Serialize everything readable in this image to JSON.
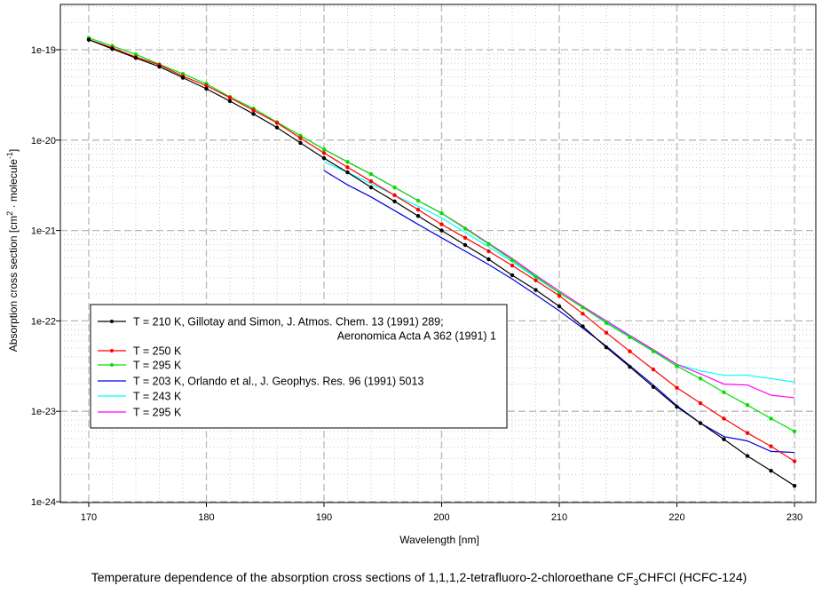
{
  "chart_data": {
    "type": "line",
    "title": "Temperature dependence of the absorption cross sections of 1,1,1,2-tetrafluoro-2-chloroethane CF3CHFCl (HCFC-124)",
    "title_parts": {
      "pre": "Temperature dependence of the absorption cross sections of 1,1,1,2-tetrafluoro-2-chloroethane CF",
      "sub": "3",
      "post": "CHFCl (HCFC-124)"
    },
    "xlabel": "Wavelength [nm]",
    "ylabel": "Absorption cross section [cm2 · molecule-1]",
    "ylabel_parts": {
      "a": "Absorption cross section [cm",
      "sup1": "2",
      "b": " · molecule",
      "sup2": "-1",
      "c": "]"
    },
    "xlim": [
      170,
      230
    ],
    "ylim": [
      1e-24,
      1e-19
    ],
    "yscale": "log",
    "grid": true,
    "legend_placement": "center-left",
    "x_ticks": [
      "170",
      "180",
      "190",
      "200",
      "210",
      "220",
      "230"
    ],
    "y_ticks": [
      "1e-19",
      "1e-20",
      "1e-21",
      "1e-22",
      "1e-23",
      "1e-24"
    ],
    "series": [
      {
        "name": "T = 210 K, Gillotay and Simon, J. Atmos. Chem. 13 (1991) 289;",
        "name2": "Aeronomica Acta A 362 (1991) 1",
        "color": "#000000",
        "markers": true,
        "x": [
          170,
          172,
          174,
          176,
          178,
          180,
          182,
          184,
          186,
          188,
          190,
          192,
          194,
          196,
          198,
          200,
          202,
          204,
          206,
          208,
          210,
          212,
          214,
          216,
          218,
          220,
          222,
          224,
          226,
          228,
          230
        ],
        "y": [
          1.29e-19,
          1.02e-19,
          8.1e-20,
          6.5e-20,
          4.9e-20,
          3.7e-20,
          2.7e-20,
          1.95e-20,
          1.38e-20,
          9.3e-21,
          6.3e-21,
          4.4e-21,
          3e-21,
          2.1e-21,
          1.45e-21,
          1e-21,
          6.9e-22,
          4.8e-22,
          3.2e-22,
          2.2e-22,
          1.45e-22,
          8.7e-23,
          5.1e-23,
          3.1e-23,
          1.86e-23,
          1.12e-23,
          7.4e-24,
          4.9e-24,
          3.2e-24,
          2.2e-24,
          1.5e-24
        ]
      },
      {
        "name": "T = 250 K",
        "color": "#ff0000",
        "markers": true,
        "x": [
          170,
          172,
          174,
          176,
          178,
          180,
          182,
          184,
          186,
          188,
          190,
          192,
          194,
          196,
          198,
          200,
          202,
          204,
          206,
          208,
          210,
          212,
          214,
          216,
          218,
          220,
          222,
          224,
          226,
          228,
          230
        ],
        "y": [
          1.29e-19,
          1.05e-19,
          8.3e-20,
          6.8e-20,
          5.1e-20,
          4e-20,
          2.95e-20,
          2.14e-20,
          1.55e-20,
          1.05e-20,
          7.2e-21,
          5e-21,
          3.5e-21,
          2.45e-21,
          1.7e-21,
          1.17e-21,
          8.3e-22,
          5.9e-22,
          4.1e-22,
          2.8e-22,
          1.9e-22,
          1.2e-22,
          7.4e-23,
          4.6e-23,
          2.9e-23,
          1.82e-23,
          1.23e-23,
          8.3e-24,
          5.75e-24,
          4.1e-24,
          2.8e-24
        ]
      },
      {
        "name": "T = 295 K",
        "color": "#00e000",
        "markers": true,
        "x": [
          170,
          172,
          174,
          176,
          178,
          180,
          182,
          184,
          186,
          188,
          190,
          192,
          194,
          196,
          198,
          200,
          202,
          204,
          206,
          208,
          210,
          212,
          214,
          216,
          218,
          220,
          222,
          224,
          226,
          228,
          230
        ],
        "y": [
          1.35e-19,
          1.1e-19,
          8.9e-20,
          6.9e-20,
          5.4e-20,
          4.2e-20,
          3e-20,
          2.24e-20,
          1.58e-20,
          1.12e-20,
          7.9e-21,
          5.75e-21,
          4.2e-21,
          3e-21,
          2.14e-21,
          1.55e-21,
          1.05e-21,
          7.1e-22,
          4.7e-22,
          3.1e-22,
          2.04e-22,
          1.41e-22,
          9.5e-23,
          6.6e-23,
          4.6e-23,
          3.16e-23,
          2.3e-23,
          1.62e-23,
          1.17e-23,
          8.3e-24,
          6e-24
        ]
      },
      {
        "name": "T = 203 K, Orlando et al., J. Geophys. Res. 96 (1991) 5013",
        "color": "#0000dd",
        "markers": false,
        "x": [
          190,
          192,
          194,
          196,
          198,
          200,
          202,
          204,
          206,
          208,
          210,
          212,
          214,
          216,
          218,
          220,
          222,
          224,
          226,
          228,
          230
        ],
        "y": [
          4.6e-21,
          3.2e-21,
          2.35e-21,
          1.66e-21,
          1.17e-21,
          8.3e-22,
          5.9e-22,
          4.2e-22,
          2.9e-22,
          1.95e-22,
          1.29e-22,
          8.3e-23,
          5.25e-23,
          3.2e-23,
          1.95e-23,
          1.15e-23,
          7.4e-24,
          5.25e-24,
          4.7e-24,
          3.6e-24,
          3.5e-24
        ]
      },
      {
        "name": "T = 243 K",
        "color": "#00ffff",
        "markers": false,
        "x": [
          190,
          192,
          194,
          196,
          198,
          200,
          202,
          204,
          206,
          208,
          210,
          212,
          214,
          216,
          218,
          220,
          222,
          224,
          226,
          228,
          230
        ],
        "y": [
          5.75e-21,
          4.4e-21,
          3.3e-21,
          2.45e-21,
          1.86e-21,
          1.38e-21,
          9.5e-22,
          6.6e-22,
          4.5e-22,
          3e-22,
          2.04e-22,
          1.41e-22,
          9.8e-23,
          6.8e-23,
          4.7e-23,
          3.3e-23,
          2.8e-23,
          2.5e-23,
          2.5e-23,
          2.3e-23,
          2.1e-23
        ]
      },
      {
        "name": "T = 295 K",
        "color": "#ff00ff",
        "markers": false,
        "x": [
          190,
          192,
          194,
          196,
          198,
          200,
          202,
          204,
          206,
          208,
          210,
          212,
          214,
          216,
          218,
          220,
          222,
          224,
          226,
          228,
          230
        ],
        "y": [
          7.9e-21,
          5.75e-21,
          4.2e-21,
          3e-21,
          2.14e-21,
          1.55e-21,
          1.07e-21,
          7.2e-22,
          4.9e-22,
          3.2e-22,
          2.14e-22,
          1.45e-22,
          1e-22,
          6.9e-23,
          4.8e-23,
          3.3e-23,
          2.6e-23,
          2e-23,
          1.95e-23,
          1.51e-23,
          1.41e-23
        ]
      }
    ]
  }
}
